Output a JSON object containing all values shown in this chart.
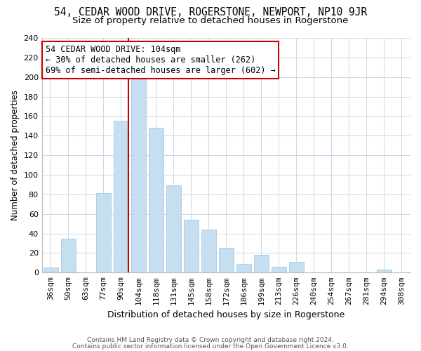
{
  "title": "54, CEDAR WOOD DRIVE, ROGERSTONE, NEWPORT, NP10 9JR",
  "subtitle": "Size of property relative to detached houses in Rogerstone",
  "xlabel": "Distribution of detached houses by size in Rogerstone",
  "ylabel": "Number of detached properties",
  "bar_color": "#c5dff0",
  "bar_edge_color": "#a8c8e0",
  "categories": [
    "36sqm",
    "50sqm",
    "63sqm",
    "77sqm",
    "90sqm",
    "104sqm",
    "118sqm",
    "131sqm",
    "145sqm",
    "158sqm",
    "172sqm",
    "186sqm",
    "199sqm",
    "213sqm",
    "226sqm",
    "240sqm",
    "254sqm",
    "267sqm",
    "281sqm",
    "294sqm",
    "308sqm"
  ],
  "values": [
    5,
    35,
    0,
    81,
    155,
    202,
    148,
    89,
    54,
    44,
    25,
    9,
    18,
    6,
    11,
    0,
    0,
    0,
    0,
    3,
    0
  ],
  "vline_color": "#cc0000",
  "annotation_title": "54 CEDAR WOOD DRIVE: 104sqm",
  "annotation_line1": "← 30% of detached houses are smaller (262)",
  "annotation_line2": "69% of semi-detached houses are larger (602) →",
  "annotation_box_color": "#ffffff",
  "annotation_box_edge": "#cc0000",
  "ylim": [
    0,
    240
  ],
  "yticks": [
    0,
    20,
    40,
    60,
    80,
    100,
    120,
    140,
    160,
    180,
    200,
    220,
    240
  ],
  "footnote1": "Contains HM Land Registry data © Crown copyright and database right 2024.",
  "footnote2": "Contains public sector information licensed under the Open Government Licence v3.0.",
  "bg_color": "#ffffff",
  "grid_color": "#ccd8e8",
  "title_fontsize": 10.5,
  "subtitle_fontsize": 9.5,
  "ylabel_fontsize": 8.5,
  "xlabel_fontsize": 9,
  "tick_fontsize": 8,
  "ann_fontsize": 8.5,
  "footnote_fontsize": 6.5
}
